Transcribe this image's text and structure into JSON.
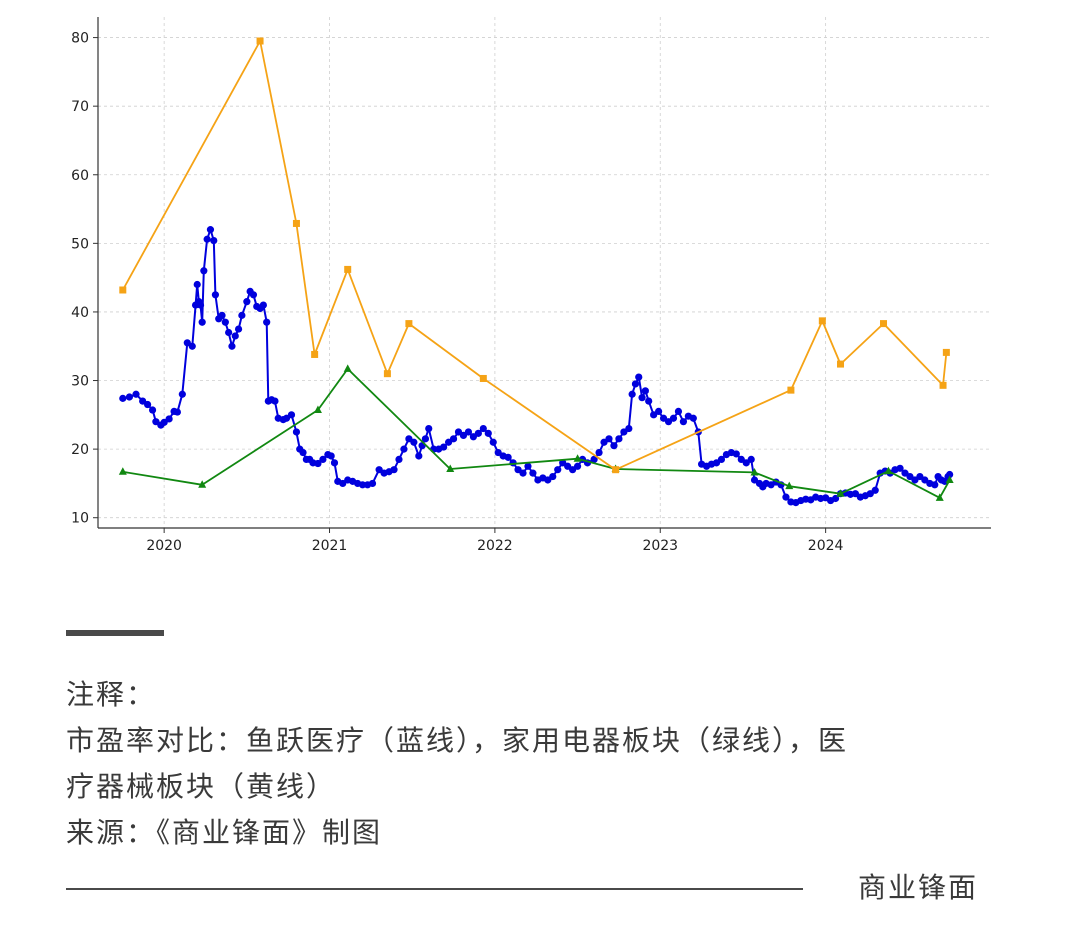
{
  "chart_data": {
    "type": "line",
    "title": "",
    "xlabel": "",
    "ylabel": "",
    "x_ticks": [
      "2020",
      "2021",
      "2022",
      "2023",
      "2024"
    ],
    "y_ticks": [
      10,
      20,
      30,
      40,
      50,
      60,
      70,
      80
    ],
    "xlim": [
      2019.6,
      2025.0
    ],
    "ylim": [
      8.5,
      83
    ],
    "grid": true,
    "legend": "none",
    "series": [
      {
        "color": "#0000dd",
        "marker": "circle",
        "points": [
          [
            2019.75,
            27.4
          ],
          [
            2019.79,
            27.6
          ],
          [
            2019.83,
            28.0
          ],
          [
            2019.87,
            27.0
          ],
          [
            2019.9,
            26.5
          ],
          [
            2019.93,
            25.7
          ],
          [
            2019.95,
            24.0
          ],
          [
            2019.98,
            23.5
          ],
          [
            2020.0,
            23.9
          ],
          [
            2020.03,
            24.4
          ],
          [
            2020.06,
            25.5
          ],
          [
            2020.08,
            25.4
          ],
          [
            2020.11,
            28.0
          ],
          [
            2020.14,
            35.5
          ],
          [
            2020.17,
            35.0
          ],
          [
            2020.19,
            41.0
          ],
          [
            2020.2,
            44.0
          ],
          [
            2020.21,
            41.5
          ],
          [
            2020.22,
            41.0
          ],
          [
            2020.23,
            38.5
          ],
          [
            2020.24,
            46.0
          ],
          [
            2020.26,
            50.6
          ],
          [
            2020.28,
            52.0
          ],
          [
            2020.3,
            50.4
          ],
          [
            2020.31,
            42.5
          ],
          [
            2020.33,
            39.0
          ],
          [
            2020.35,
            39.5
          ],
          [
            2020.37,
            38.5
          ],
          [
            2020.39,
            37.0
          ],
          [
            2020.41,
            35.0
          ],
          [
            2020.43,
            36.5
          ],
          [
            2020.45,
            37.5
          ],
          [
            2020.47,
            39.5
          ],
          [
            2020.5,
            41.5
          ],
          [
            2020.52,
            43.0
          ],
          [
            2020.54,
            42.5
          ],
          [
            2020.56,
            40.8
          ],
          [
            2020.58,
            40.5
          ],
          [
            2020.6,
            41.0
          ],
          [
            2020.62,
            38.5
          ],
          [
            2020.63,
            27.0
          ],
          [
            2020.65,
            27.2
          ],
          [
            2020.67,
            27.0
          ],
          [
            2020.69,
            24.5
          ],
          [
            2020.72,
            24.3
          ],
          [
            2020.74,
            24.5
          ],
          [
            2020.77,
            25.0
          ],
          [
            2020.8,
            22.5
          ],
          [
            2020.82,
            20.0
          ],
          [
            2020.84,
            19.5
          ],
          [
            2020.86,
            18.5
          ],
          [
            2020.88,
            18.5
          ],
          [
            2020.9,
            18.0
          ],
          [
            2020.93,
            17.9
          ],
          [
            2020.96,
            18.5
          ],
          [
            2020.99,
            19.2
          ],
          [
            2021.01,
            19.0
          ],
          [
            2021.03,
            18.0
          ],
          [
            2021.05,
            15.3
          ],
          [
            2021.08,
            15.0
          ],
          [
            2021.11,
            15.5
          ],
          [
            2021.14,
            15.3
          ],
          [
            2021.17,
            15.0
          ],
          [
            2021.2,
            14.8
          ],
          [
            2021.23,
            14.8
          ],
          [
            2021.26,
            15.0
          ],
          [
            2021.3,
            17.0
          ],
          [
            2021.33,
            16.5
          ],
          [
            2021.36,
            16.7
          ],
          [
            2021.39,
            17.0
          ],
          [
            2021.42,
            18.5
          ],
          [
            2021.45,
            20.0
          ],
          [
            2021.48,
            21.5
          ],
          [
            2021.51,
            21.0
          ],
          [
            2021.54,
            19.0
          ],
          [
            2021.56,
            20.5
          ],
          [
            2021.58,
            21.5
          ],
          [
            2021.6,
            23.0
          ],
          [
            2021.63,
            20.0
          ],
          [
            2021.66,
            20.0
          ],
          [
            2021.69,
            20.3
          ],
          [
            2021.72,
            21.0
          ],
          [
            2021.75,
            21.5
          ],
          [
            2021.78,
            22.5
          ],
          [
            2021.81,
            22.0
          ],
          [
            2021.84,
            22.5
          ],
          [
            2021.87,
            21.8
          ],
          [
            2021.9,
            22.3
          ],
          [
            2021.93,
            23.0
          ],
          [
            2021.96,
            22.3
          ],
          [
            2021.99,
            21.0
          ],
          [
            2022.02,
            19.5
          ],
          [
            2022.05,
            19.0
          ],
          [
            2022.08,
            18.8
          ],
          [
            2022.11,
            18.0
          ],
          [
            2022.14,
            17.0
          ],
          [
            2022.17,
            16.5
          ],
          [
            2022.2,
            17.5
          ],
          [
            2022.23,
            16.5
          ],
          [
            2022.26,
            15.5
          ],
          [
            2022.29,
            15.8
          ],
          [
            2022.32,
            15.5
          ],
          [
            2022.35,
            16.0
          ],
          [
            2022.38,
            17.0
          ],
          [
            2022.41,
            18.0
          ],
          [
            2022.44,
            17.5
          ],
          [
            2022.47,
            17.0
          ],
          [
            2022.5,
            17.5
          ],
          [
            2022.53,
            18.5
          ],
          [
            2022.56,
            18.0
          ],
          [
            2022.6,
            18.5
          ],
          [
            2022.63,
            19.5
          ],
          [
            2022.66,
            21.0
          ],
          [
            2022.69,
            21.5
          ],
          [
            2022.72,
            20.5
          ],
          [
            2022.75,
            21.5
          ],
          [
            2022.78,
            22.5
          ],
          [
            2022.81,
            23.0
          ],
          [
            2022.83,
            28.0
          ],
          [
            2022.85,
            29.5
          ],
          [
            2022.87,
            30.5
          ],
          [
            2022.89,
            27.5
          ],
          [
            2022.91,
            28.5
          ],
          [
            2022.93,
            27.0
          ],
          [
            2022.96,
            25.0
          ],
          [
            2022.99,
            25.5
          ],
          [
            2023.02,
            24.5
          ],
          [
            2023.05,
            24.0
          ],
          [
            2023.08,
            24.5
          ],
          [
            2023.11,
            25.5
          ],
          [
            2023.14,
            24.0
          ],
          [
            2023.17,
            24.8
          ],
          [
            2023.2,
            24.5
          ],
          [
            2023.23,
            22.5
          ],
          [
            2023.25,
            17.8
          ],
          [
            2023.28,
            17.5
          ],
          [
            2023.31,
            17.8
          ],
          [
            2023.34,
            18.0
          ],
          [
            2023.37,
            18.5
          ],
          [
            2023.4,
            19.2
          ],
          [
            2023.43,
            19.5
          ],
          [
            2023.46,
            19.3
          ],
          [
            2023.49,
            18.5
          ],
          [
            2023.52,
            18.0
          ],
          [
            2023.55,
            18.5
          ],
          [
            2023.57,
            15.5
          ],
          [
            2023.6,
            15.0
          ],
          [
            2023.62,
            14.5
          ],
          [
            2023.64,
            15.0
          ],
          [
            2023.67,
            14.8
          ],
          [
            2023.7,
            15.2
          ],
          [
            2023.73,
            14.8
          ],
          [
            2023.76,
            13.0
          ],
          [
            2023.79,
            12.3
          ],
          [
            2023.82,
            12.2
          ],
          [
            2023.85,
            12.5
          ],
          [
            2023.88,
            12.7
          ],
          [
            2023.91,
            12.6
          ],
          [
            2023.94,
            13.0
          ],
          [
            2023.97,
            12.8
          ],
          [
            2024.0,
            12.9
          ],
          [
            2024.03,
            12.5
          ],
          [
            2024.06,
            12.8
          ],
          [
            2024.09,
            13.5
          ],
          [
            2024.12,
            13.6
          ],
          [
            2024.15,
            13.4
          ],
          [
            2024.18,
            13.5
          ],
          [
            2024.21,
            13.0
          ],
          [
            2024.24,
            13.2
          ],
          [
            2024.27,
            13.5
          ],
          [
            2024.3,
            14.0
          ],
          [
            2024.33,
            16.5
          ],
          [
            2024.36,
            16.8
          ],
          [
            2024.39,
            16.5
          ],
          [
            2024.42,
            17.0
          ],
          [
            2024.45,
            17.2
          ],
          [
            2024.48,
            16.5
          ],
          [
            2024.51,
            16.0
          ],
          [
            2024.54,
            15.5
          ],
          [
            2024.57,
            16.0
          ],
          [
            2024.6,
            15.5
          ],
          [
            2024.63,
            15.0
          ],
          [
            2024.66,
            14.8
          ],
          [
            2024.68,
            16.0
          ],
          [
            2024.7,
            15.5
          ],
          [
            2024.72,
            15.3
          ],
          [
            2024.74,
            16.0
          ],
          [
            2024.75,
            16.3
          ]
        ]
      },
      {
        "color": "#118811",
        "marker": "triangle",
        "points": [
          [
            2019.75,
            16.7
          ],
          [
            2020.23,
            14.8
          ],
          [
            2020.93,
            25.7
          ],
          [
            2021.11,
            31.7
          ],
          [
            2021.73,
            17.1
          ],
          [
            2022.5,
            18.6
          ],
          [
            2022.73,
            17.1
          ],
          [
            2023.57,
            16.6
          ],
          [
            2023.78,
            14.6
          ],
          [
            2024.09,
            13.5
          ],
          [
            2024.38,
            16.8
          ],
          [
            2024.69,
            12.9
          ],
          [
            2024.75,
            15.5
          ]
        ]
      },
      {
        "color": "#f5a316",
        "marker": "square",
        "points": [
          [
            2019.75,
            43.2
          ],
          [
            2020.58,
            79.5
          ],
          [
            2020.8,
            52.9
          ],
          [
            2020.91,
            33.8
          ],
          [
            2021.11,
            46.2
          ],
          [
            2021.35,
            31.0
          ],
          [
            2021.48,
            38.3
          ],
          [
            2021.93,
            30.3
          ],
          [
            2022.73,
            17.0
          ],
          [
            2023.79,
            28.6
          ],
          [
            2023.98,
            38.7
          ],
          [
            2024.09,
            32.4
          ],
          [
            2024.35,
            38.3
          ],
          [
            2024.71,
            29.3
          ],
          [
            2024.73,
            34.1
          ]
        ]
      }
    ]
  },
  "notes": {
    "heading": "注释：",
    "line1": "市盈率对比：鱼跃医疗（蓝线），家用电器板块（绿线），医",
    "line2": "疗器械板块（黄线）",
    "source": "来源：《商业锋面》制图"
  },
  "brand": "商业锋面"
}
